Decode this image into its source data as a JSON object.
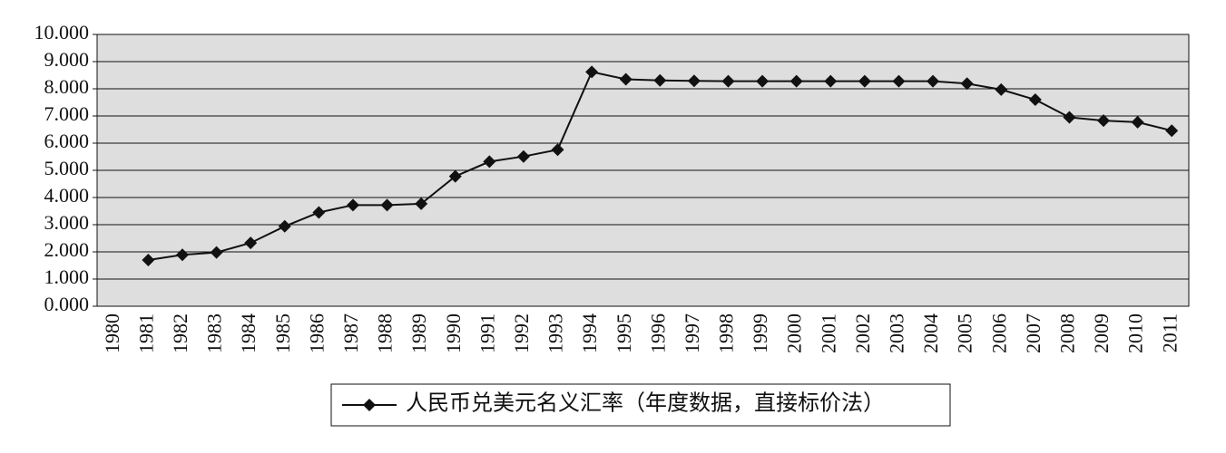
{
  "chart_data": {
    "type": "line",
    "categories": [
      "1980",
      "1981",
      "1982",
      "1983",
      "1984",
      "1985",
      "1986",
      "1987",
      "1988",
      "1989",
      "1990",
      "1991",
      "1992",
      "1993",
      "1994",
      "1995",
      "1996",
      "1997",
      "1998",
      "1999",
      "2000",
      "2001",
      "2002",
      "2003",
      "2004",
      "2005",
      "2006",
      "2007",
      "2008",
      "2009",
      "2010",
      "2011"
    ],
    "series": [
      {
        "name": "人民币兑美元名义汇率（年度数据，直接标价法）",
        "color": "#111111",
        "values": [
          null,
          1.7,
          1.89,
          1.98,
          2.33,
          2.94,
          3.45,
          3.72,
          3.72,
          3.77,
          4.78,
          5.32,
          5.51,
          5.76,
          8.62,
          8.35,
          8.31,
          8.29,
          8.28,
          8.28,
          8.28,
          8.28,
          8.28,
          8.28,
          8.28,
          8.19,
          7.97,
          7.6,
          6.95,
          6.83,
          6.77,
          6.46
        ]
      }
    ],
    "ylim": [
      0,
      10
    ],
    "yticks": [
      {
        "value": 0,
        "label": "0.000"
      },
      {
        "value": 1,
        "label": "1.000"
      },
      {
        "value": 2,
        "label": "2.000"
      },
      {
        "value": 3,
        "label": "3.000"
      },
      {
        "value": 4,
        "label": "4.000"
      },
      {
        "value": 5,
        "label": "5.000"
      },
      {
        "value": 6,
        "label": "6.000"
      },
      {
        "value": 7,
        "label": "7.000"
      },
      {
        "value": 8,
        "label": "8.000"
      },
      {
        "value": 9,
        "label": "9.000"
      },
      {
        "value": 10,
        "label": "10.000"
      }
    ],
    "grid": true,
    "legend": "bottom",
    "plot_background": "#dedede"
  }
}
